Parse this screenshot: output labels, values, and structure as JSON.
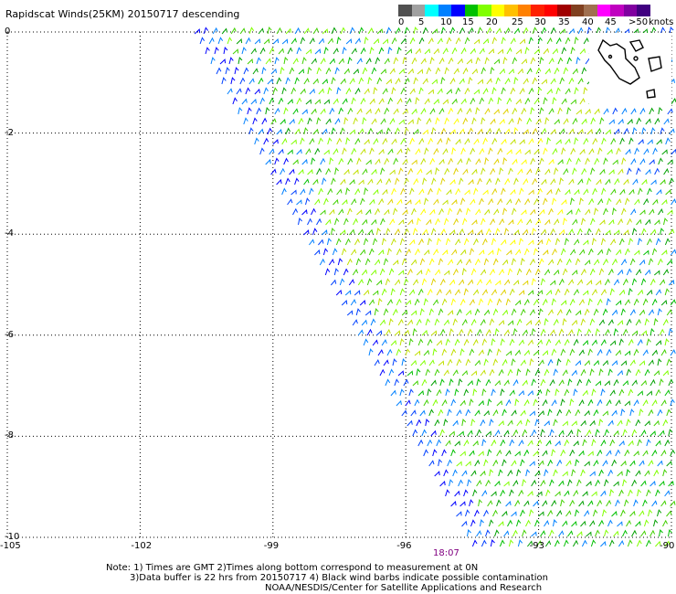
{
  "title": "Rapidscat Winds(25KM) 20150717 descending",
  "colorbar": {
    "unit_label": "knots",
    "tick_labels": [
      "0",
      "5",
      "10",
      "15",
      "20",
      "25",
      "30",
      "35",
      "40",
      "45",
      ">50"
    ],
    "colors": [
      "#505050",
      "#a0a0a0",
      "#00ffff",
      "#0080ff",
      "#0000ff",
      "#00c000",
      "#80ff00",
      "#ffff00",
      "#ffc000",
      "#ff8000",
      "#ff2000",
      "#ff0000",
      "#a00000",
      "#804020",
      "#a07050",
      "#ff00ff",
      "#c000c0",
      "#8000a0",
      "#400080"
    ]
  },
  "map": {
    "lon_range": [
      -105,
      -90
    ],
    "lat_range": [
      -10,
      0
    ],
    "lon_ticks": [
      "-105",
      "-102",
      "-99",
      "-96",
      "-93",
      "-90"
    ],
    "lat_ticks": [
      "0",
      "-2",
      "-4",
      "-6",
      "-8",
      "-10"
    ],
    "grid": "dotted",
    "swath_time": "18:07"
  },
  "notes": {
    "line1": "Note: 1) Times are GMT 2)Times along bottom correspond to measurement at 0N",
    "line2": "3)Data buffer is 22 hrs from 20150717 4) Black wind barbs indicate possible contamination",
    "line3": "NOAA/NESDIS/Center for Satellite Applications and Research"
  }
}
